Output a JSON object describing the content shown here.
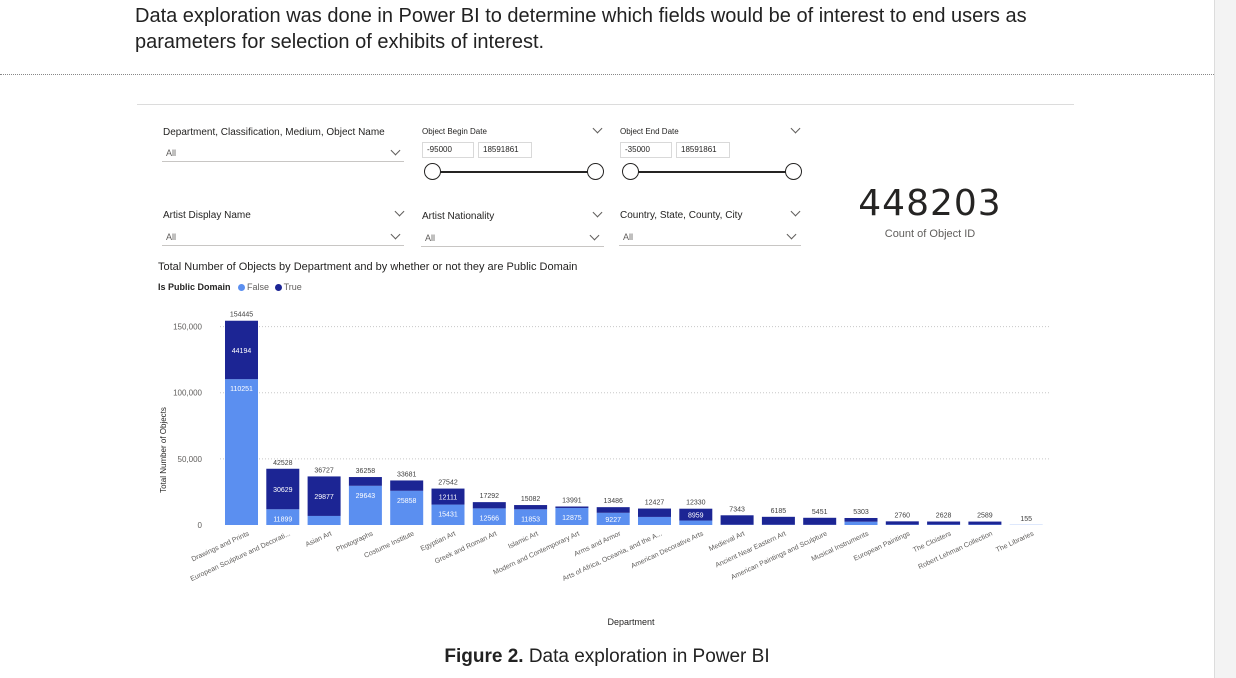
{
  "intro_text": "Data exploration was done in Power BI to determine which fields would be of interest to end users as parameters for selection of exhibits of interest.",
  "slicers": {
    "dept": {
      "title": "Department, Classification, Medium, Object Name",
      "value": "All"
    },
    "begin": {
      "title": "Object Begin Date",
      "min": "-95000",
      "max": "18591861"
    },
    "end": {
      "title": "Object End Date",
      "min": "-35000",
      "max": "18591861"
    },
    "artist": {
      "title": "Artist Display Name",
      "value": "All"
    },
    "nationality": {
      "title": "Artist Nationality",
      "value": "All"
    },
    "location": {
      "title": "Country, State, County, City",
      "value": "All"
    }
  },
  "kpi": {
    "value": "448203",
    "label": "Count of Object ID"
  },
  "chart_title": "Total Number of Objects by Department and by whether or not they are Public Domain",
  "legend": {
    "title": "Is Public Domain",
    "false_label": "False",
    "true_label": "True"
  },
  "caption": {
    "bold": "Figure 2.",
    "text": " Data exploration in Power BI"
  },
  "colors": {
    "false": "#5b8ff0",
    "true": "#1c2594"
  },
  "chart_data": {
    "type": "bar",
    "stacked": true,
    "xlabel": "Department",
    "ylabel": "Total Number of Objects",
    "ylim": [
      0,
      155000
    ],
    "yticks": [
      0,
      50000,
      100000,
      150000
    ],
    "ytick_labels": [
      "0",
      "50,000",
      "100,000",
      "150,000"
    ],
    "categories": [
      "Drawings and Prints",
      "European Sculpture and Decorati...",
      "Asian Art",
      "Photographs",
      "Costume Institute",
      "Egyptian Art",
      "Greek and Roman Art",
      "Islamic Art",
      "Modern and Contemporary Art",
      "Arms and Armor",
      "Arts of Africa, Oceania, and the A...",
      "American Decorative Arts",
      "Medieval Art",
      "Ancient Near Eastern Art",
      "American Paintings and Sculpture",
      "Musical Instruments",
      "European Paintings",
      "The Cloisters",
      "Robert Lehman Collection",
      "The Libraries"
    ],
    "totals": [
      154445,
      42528,
      36727,
      36258,
      33681,
      27542,
      17292,
      15082,
      13991,
      13486,
      12427,
      12330,
      7343,
      6185,
      5451,
      5303,
      2760,
      2628,
      2589,
      155
    ],
    "series": [
      {
        "name": "False",
        "values": [
          110251,
          11899,
          6850,
          29643,
          25858,
          15431,
          12566,
          11853,
          12875,
          9227,
          6100,
          3371,
          200,
          200,
          150,
          2500,
          300,
          300,
          300,
          155
        ],
        "labels": [
          "110251",
          "11899",
          "",
          "29643",
          "25858",
          "15431",
          "12566",
          "11853",
          "12875",
          "9227",
          "",
          "",
          "",
          "",
          "",
          "",
          "",
          "",
          "",
          ""
        ]
      },
      {
        "name": "True",
        "values": [
          44194,
          30629,
          29877,
          6615,
          7823,
          12111,
          4726,
          3229,
          1116,
          4259,
          6327,
          8959,
          7143,
          5985,
          5301,
          2803,
          2460,
          2328,
          2289,
          0
        ],
        "labels": [
          "44194",
          "30629",
          "29877",
          "",
          "",
          "12111",
          "",
          "",
          "",
          "",
          "",
          "8959",
          "",
          "",
          "",
          "",
          "",
          "",
          "",
          ""
        ]
      }
    ]
  }
}
